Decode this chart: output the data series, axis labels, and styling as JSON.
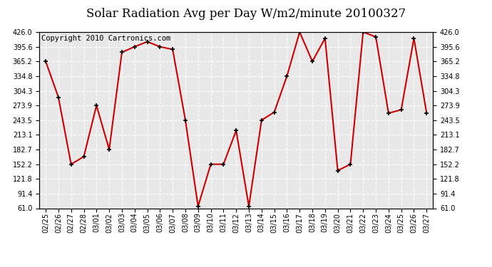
{
  "title": "Solar Radiation Avg per Day W/m2/minute 20100327",
  "copyright": "Copyright 2010 Cartronics.com",
  "dates": [
    "02/25",
    "02/26",
    "02/27",
    "02/28",
    "03/01",
    "03/02",
    "03/03",
    "03/04",
    "03/05",
    "03/06",
    "03/07",
    "03/08",
    "03/09",
    "03/10",
    "03/11",
    "03/12",
    "03/13",
    "03/14",
    "03/15",
    "03/16",
    "03/17",
    "03/18",
    "03/19",
    "03/20",
    "03/21",
    "03/22",
    "03/23",
    "03/24",
    "03/25",
    "03/26",
    "03/27"
  ],
  "values": [
    365.2,
    291.0,
    152.2,
    168.0,
    273.9,
    182.7,
    384.0,
    395.6,
    406.0,
    395.6,
    390.0,
    243.5,
    65.0,
    152.2,
    152.2,
    222.0,
    65.0,
    243.5,
    260.0,
    334.8,
    426.0,
    365.2,
    413.0,
    139.0,
    152.2,
    426.0,
    416.0,
    258.0,
    265.0,
    413.0,
    258.0
  ],
  "ylim": [
    61.0,
    426.0
  ],
  "yticks": [
    61.0,
    91.4,
    121.8,
    152.2,
    182.7,
    213.1,
    243.5,
    273.9,
    304.3,
    334.8,
    365.2,
    395.6,
    426.0
  ],
  "line_color": "#cc0000",
  "marker_color": "#000000",
  "plot_bg_color": "#e8e8e8",
  "fig_bg_color": "#ffffff",
  "grid_color": "#ffffff",
  "title_fontsize": 12,
  "tick_fontsize": 7,
  "copyright_fontsize": 7.5
}
